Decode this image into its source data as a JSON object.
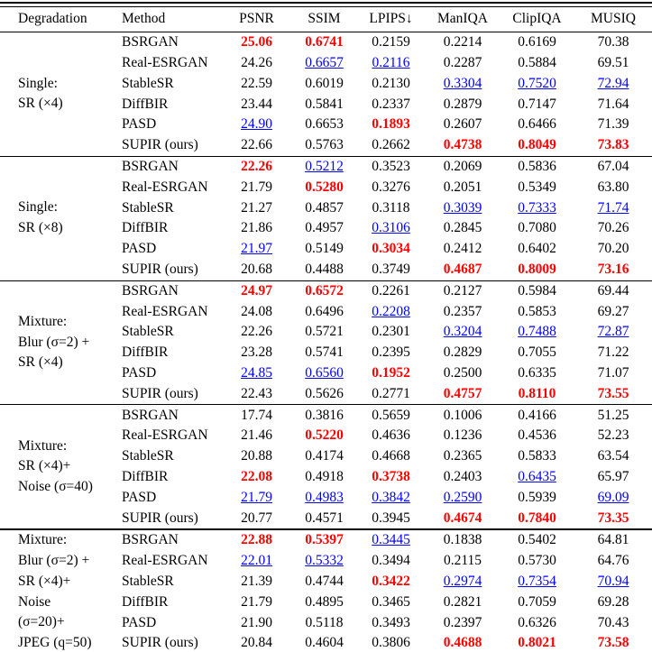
{
  "table": {
    "headers": [
      "Degradation",
      "Method",
      "PSNR",
      "SSIM",
      "LPIPS↓",
      "ManIQA",
      "ClipIQA",
      "MUSIQ"
    ],
    "highlight_colors": {
      "best": "#ff0000",
      "second_best": "#0000ff"
    },
    "highlight_legend": {
      "best": "red bold = best",
      "second_best": "blue underline = second best"
    },
    "groups": [
      {
        "degradation_lines": [
          "Single:",
          "SR (×4)"
        ],
        "rows": [
          {
            "method": "BSRGAN",
            "cells": [
              {
                "v": "25.06",
                "s": "best"
              },
              {
                "v": "0.6741",
                "s": "best"
              },
              {
                "v": "0.2159"
              },
              {
                "v": "0.2214"
              },
              {
                "v": "0.6169"
              },
              {
                "v": "70.38"
              }
            ]
          },
          {
            "method": "Real-ESRGAN",
            "cells": [
              {
                "v": "24.26"
              },
              {
                "v": "0.6657",
                "s": "second"
              },
              {
                "v": "0.2116",
                "s": "second"
              },
              {
                "v": "0.2287"
              },
              {
                "v": "0.5884"
              },
              {
                "v": "69.51"
              }
            ]
          },
          {
            "method": "StableSR",
            "cells": [
              {
                "v": "22.59"
              },
              {
                "v": "0.6019"
              },
              {
                "v": "0.2130"
              },
              {
                "v": "0.3304",
                "s": "second"
              },
              {
                "v": "0.7520",
                "s": "second"
              },
              {
                "v": "72.94",
                "s": "second"
              }
            ]
          },
          {
            "method": "DiffBIR",
            "cells": [
              {
                "v": "23.44"
              },
              {
                "v": "0.5841"
              },
              {
                "v": "0.2337"
              },
              {
                "v": "0.2879"
              },
              {
                "v": "0.7147"
              },
              {
                "v": "71.64"
              }
            ]
          },
          {
            "method": "PASD",
            "cells": [
              {
                "v": "24.90",
                "s": "second"
              },
              {
                "v": "0.6653"
              },
              {
                "v": "0.1893",
                "s": "best"
              },
              {
                "v": "0.2607"
              },
              {
                "v": "0.6466"
              },
              {
                "v": "71.39"
              }
            ]
          },
          {
            "method": "SUPIR (ours)",
            "cells": [
              {
                "v": "22.66"
              },
              {
                "v": "0.5763"
              },
              {
                "v": "0.2662"
              },
              {
                "v": "0.4738",
                "s": "best"
              },
              {
                "v": "0.8049",
                "s": "best"
              },
              {
                "v": "73.83",
                "s": "best"
              }
            ]
          }
        ]
      },
      {
        "degradation_lines": [
          "Single:",
          "SR (×8)"
        ],
        "rows": [
          {
            "method": "BSRGAN",
            "cells": [
              {
                "v": "22.26",
                "s": "best"
              },
              {
                "v": "0.5212",
                "s": "second"
              },
              {
                "v": "0.3523"
              },
              {
                "v": "0.2069"
              },
              {
                "v": "0.5836"
              },
              {
                "v": "67.04"
              }
            ]
          },
          {
            "method": "Real-ESRGAN",
            "cells": [
              {
                "v": "21.79"
              },
              {
                "v": "0.5280",
                "s": "best"
              },
              {
                "v": "0.3276"
              },
              {
                "v": "0.2051"
              },
              {
                "v": "0.5349"
              },
              {
                "v": "63.80"
              }
            ]
          },
          {
            "method": "StableSR",
            "cells": [
              {
                "v": "21.27"
              },
              {
                "v": "0.4857"
              },
              {
                "v": "0.3118"
              },
              {
                "v": "0.3039",
                "s": "second"
              },
              {
                "v": "0.7333",
                "s": "second"
              },
              {
                "v": "71.74",
                "s": "second"
              }
            ]
          },
          {
            "method": "DiffBIR",
            "cells": [
              {
                "v": "21.86"
              },
              {
                "v": "0.4957"
              },
              {
                "v": "0.3106",
                "s": "second"
              },
              {
                "v": "0.2845"
              },
              {
                "v": "0.7080"
              },
              {
                "v": "70.26"
              }
            ]
          },
          {
            "method": "PASD",
            "cells": [
              {
                "v": "21.97",
                "s": "second"
              },
              {
                "v": "0.5149"
              },
              {
                "v": "0.3034",
                "s": "best"
              },
              {
                "v": "0.2412"
              },
              {
                "v": "0.6402"
              },
              {
                "v": "70.20"
              }
            ]
          },
          {
            "method": "SUPIR (ours)",
            "cells": [
              {
                "v": "20.68"
              },
              {
                "v": "0.4488"
              },
              {
                "v": "0.3749"
              },
              {
                "v": "0.4687",
                "s": "best"
              },
              {
                "v": "0.8009",
                "s": "best"
              },
              {
                "v": "73.16",
                "s": "best"
              }
            ]
          }
        ]
      },
      {
        "degradation_lines": [
          "Mixture:",
          "Blur (σ=2) +",
          "SR (×4)"
        ],
        "rows": [
          {
            "method": "BSRGAN",
            "cells": [
              {
                "v": "24.97",
                "s": "best"
              },
              {
                "v": "0.6572",
                "s": "best"
              },
              {
                "v": "0.2261"
              },
              {
                "v": "0.2127"
              },
              {
                "v": "0.5984"
              },
              {
                "v": "69.44"
              }
            ]
          },
          {
            "method": "Real-ESRGAN",
            "cells": [
              {
                "v": "24.08"
              },
              {
                "v": "0.6496"
              },
              {
                "v": "0.2208",
                "s": "second"
              },
              {
                "v": "0.2357"
              },
              {
                "v": "0.5853"
              },
              {
                "v": "69.27"
              }
            ]
          },
          {
            "method": "StableSR",
            "cells": [
              {
                "v": "22.26"
              },
              {
                "v": "0.5721"
              },
              {
                "v": "0.2301"
              },
              {
                "v": "0.3204",
                "s": "second"
              },
              {
                "v": "0.7488",
                "s": "second"
              },
              {
                "v": "72.87",
                "s": "second"
              }
            ]
          },
          {
            "method": "DiffBIR",
            "cells": [
              {
                "v": "23.28"
              },
              {
                "v": "0.5741"
              },
              {
                "v": "0.2395"
              },
              {
                "v": "0.2829"
              },
              {
                "v": "0.7055"
              },
              {
                "v": "71.22"
              }
            ]
          },
          {
            "method": "PASD",
            "cells": [
              {
                "v": "24.85",
                "s": "second"
              },
              {
                "v": "0.6560",
                "s": "second"
              },
              {
                "v": "0.1952",
                "s": "best"
              },
              {
                "v": "0.2500"
              },
              {
                "v": "0.6335"
              },
              {
                "v": "71.07"
              }
            ]
          },
          {
            "method": "SUPIR (ours)",
            "cells": [
              {
                "v": "22.43"
              },
              {
                "v": "0.5626"
              },
              {
                "v": "0.2771"
              },
              {
                "v": "0.4757",
                "s": "best"
              },
              {
                "v": "0.8110",
                "s": "best"
              },
              {
                "v": "73.55",
                "s": "best"
              }
            ]
          }
        ]
      },
      {
        "degradation_lines": [
          "Mixture:",
          "SR (×4)+",
          "Noise (σ=40)"
        ],
        "rows": [
          {
            "method": "BSRGAN",
            "cells": [
              {
                "v": "17.74"
              },
              {
                "v": "0.3816"
              },
              {
                "v": "0.5659"
              },
              {
                "v": "0.1006"
              },
              {
                "v": "0.4166"
              },
              {
                "v": "51.25"
              }
            ]
          },
          {
            "method": "Real-ESRGAN",
            "cells": [
              {
                "v": "21.46"
              },
              {
                "v": "0.5220",
                "s": "best"
              },
              {
                "v": "0.4636"
              },
              {
                "v": "0.1236"
              },
              {
                "v": "0.4536"
              },
              {
                "v": "52.23"
              }
            ]
          },
          {
            "method": "StableSR",
            "cells": [
              {
                "v": "20.88"
              },
              {
                "v": "0.4174"
              },
              {
                "v": "0.4668"
              },
              {
                "v": "0.2365"
              },
              {
                "v": "0.5833"
              },
              {
                "v": "63.54"
              }
            ]
          },
          {
            "method": "DiffBIR",
            "cells": [
              {
                "v": "22.08",
                "s": "best"
              },
              {
                "v": "0.4918"
              },
              {
                "v": "0.3738",
                "s": "best"
              },
              {
                "v": "0.2403"
              },
              {
                "v": "0.6435",
                "s": "second"
              },
              {
                "v": "65.97"
              }
            ]
          },
          {
            "method": "PASD",
            "cells": [
              {
                "v": "21.79",
                "s": "second"
              },
              {
                "v": "0.4983",
                "s": "second"
              },
              {
                "v": "0.3842",
                "s": "second"
              },
              {
                "v": "0.2590",
                "s": "second"
              },
              {
                "v": "0.5939"
              },
              {
                "v": "69.09",
                "s": "second"
              }
            ]
          },
          {
            "method": "SUPIR (ours)",
            "cells": [
              {
                "v": "20.77"
              },
              {
                "v": "0.4571"
              },
              {
                "v": "0.3945"
              },
              {
                "v": "0.4674",
                "s": "best"
              },
              {
                "v": "0.7840",
                "s": "best"
              },
              {
                "v": "73.35",
                "s": "best"
              }
            ]
          }
        ]
      },
      {
        "degradation_lines": [
          "Mixture:",
          "Blur (σ=2) +",
          "SR (×4)+",
          "Noise",
          "(σ=20)+",
          "JPEG (q=50)"
        ],
        "rows": [
          {
            "method": "BSRGAN",
            "cells": [
              {
                "v": "22.88",
                "s": "best"
              },
              {
                "v": "0.5397",
                "s": "best"
              },
              {
                "v": "0.3445",
                "s": "second"
              },
              {
                "v": "0.1838"
              },
              {
                "v": "0.5402"
              },
              {
                "v": "64.81"
              }
            ]
          },
          {
            "method": "Real-ESRGAN",
            "cells": [
              {
                "v": "22.01",
                "s": "second"
              },
              {
                "v": "0.5332",
                "s": "second"
              },
              {
                "v": "0.3494"
              },
              {
                "v": "0.2115"
              },
              {
                "v": "0.5730"
              },
              {
                "v": "64.76"
              }
            ]
          },
          {
            "method": "StableSR",
            "cells": [
              {
                "v": "21.39"
              },
              {
                "v": "0.4744"
              },
              {
                "v": "0.3422",
                "s": "best"
              },
              {
                "v": "0.2974",
                "s": "second"
              },
              {
                "v": "0.7354",
                "s": "second"
              },
              {
                "v": "70.94",
                "s": "second"
              }
            ]
          },
          {
            "method": "DiffBIR",
            "cells": [
              {
                "v": "21.79"
              },
              {
                "v": "0.4895"
              },
              {
                "v": "0.3465"
              },
              {
                "v": "0.2821"
              },
              {
                "v": "0.7059"
              },
              {
                "v": "69.28"
              }
            ]
          },
          {
            "method": "PASD",
            "cells": [
              {
                "v": "21.90"
              },
              {
                "v": "0.5118"
              },
              {
                "v": "0.3493"
              },
              {
                "v": "0.2397"
              },
              {
                "v": "0.6326"
              },
              {
                "v": "70.43"
              }
            ]
          },
          {
            "method": "SUPIR (ours)",
            "cells": [
              {
                "v": "20.84"
              },
              {
                "v": "0.4604"
              },
              {
                "v": "0.3806"
              },
              {
                "v": "0.4688",
                "s": "best"
              },
              {
                "v": "0.8021",
                "s": "best"
              },
              {
                "v": "73.58",
                "s": "best"
              }
            ]
          }
        ]
      }
    ]
  }
}
